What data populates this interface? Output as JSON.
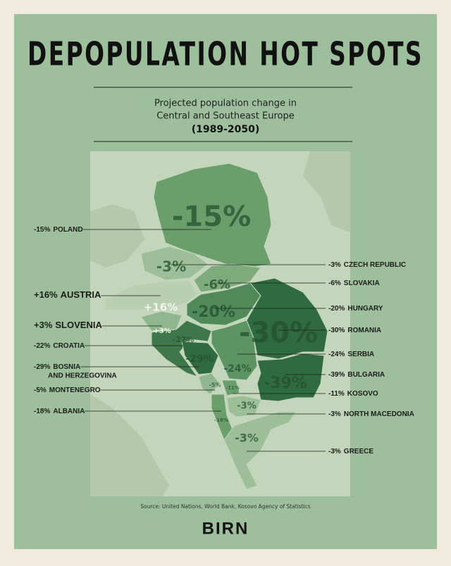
{
  "header": {
    "title": "DEPOPULATION HOT SPOTS",
    "subtitle_line1": "Projected population change in",
    "subtitle_line2": "Central and Southeast Europe",
    "period": "(1989-2050)"
  },
  "countries": [
    {
      "name": "POLAND",
      "change": "-15%"
    },
    {
      "name": "CZECH REPUBLIC",
      "change": "-3%"
    },
    {
      "name": "SLOVAKIA",
      "change": "-6%"
    },
    {
      "name": "AUSTRIA",
      "change": "+16%"
    },
    {
      "name": "HUNGARY",
      "change": "-20%"
    },
    {
      "name": "SLOVENIA",
      "change": "+3%"
    },
    {
      "name": "ROMANIA",
      "change": "-30%"
    },
    {
      "name": "CROATIA",
      "change": "-22%"
    },
    {
      "name": "SERBIA",
      "change": "-24%"
    },
    {
      "name": [
        "BOSNIA",
        "AND HERZEGOVINA"
      ],
      "change": "-29%"
    },
    {
      "name": "BULGARIA",
      "change": "-39%"
    },
    {
      "name": "MONTENEGRO",
      "change": "-5%"
    },
    {
      "name": "KOSOVO",
      "change": "-11%"
    },
    {
      "name": "ALBANIA",
      "change": "-18%"
    },
    {
      "name": "NORTH MACEDONIA",
      "change": "-3%"
    },
    {
      "name": "GREECE",
      "change": "-3%"
    }
  ],
  "footer": {
    "source": "Source: United Nations, World Bank, Kosovo Agency of Statistics",
    "logo": "BIRN"
  }
}
